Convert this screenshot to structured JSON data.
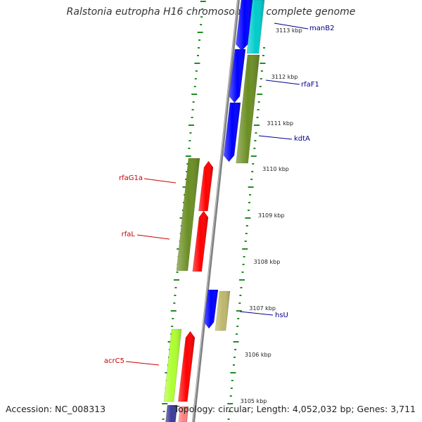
{
  "title": "Ralstonia eutropha H16 chromosome 1, complete genome",
  "footer": {
    "accession": "Accession: NC_008313",
    "summary": "Topology: circular; Length: 4,052,032 bp; Genes: 3,711"
  },
  "colors": {
    "forward_label": "#00008b",
    "reverse_label": "#cc0000",
    "tick": "#228b22",
    "backbone": "#808080",
    "blue": "#0000ff",
    "cyan": "#00cccc",
    "olive": "#6b8e23",
    "red": "#ff0000",
    "khaki": "#bdb76b",
    "lime": "#adff2f",
    "navy": "#3a3a9a"
  },
  "kbp_labels": [
    {
      "kbp": 3113,
      "text": "3113 kbp"
    },
    {
      "kbp": 3112,
      "text": "3112 kbp"
    },
    {
      "kbp": 3111,
      "text": "3111 kbp"
    },
    {
      "kbp": 3110,
      "text": "3110 kbp"
    },
    {
      "kbp": 3109,
      "text": "3109 kbp"
    },
    {
      "kbp": 3108,
      "text": "3108 kbp"
    },
    {
      "kbp": 3107,
      "text": "3107 kbp"
    },
    {
      "kbp": 3106,
      "text": "3106 kbp"
    },
    {
      "kbp": 3105,
      "text": "3105 kbp"
    }
  ],
  "gene_labels": [
    {
      "name": "manB2",
      "strand": "forward"
    },
    {
      "name": "rfaF1",
      "strand": "forward"
    },
    {
      "name": "kdtA",
      "strand": "forward"
    },
    {
      "name": "hsU",
      "strand": "forward"
    },
    {
      "name": "rfaG1a",
      "strand": "reverse"
    },
    {
      "name": "rfaL",
      "strand": "reverse"
    },
    {
      "name": "acrC5",
      "strand": "reverse"
    }
  ]
}
